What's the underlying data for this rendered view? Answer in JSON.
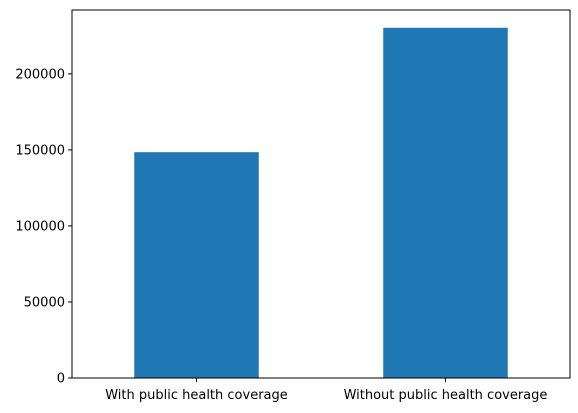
{
  "chart_data": {
    "type": "bar",
    "categories": [
      "With public health coverage",
      "Without public health coverage"
    ],
    "values": [
      148500,
      230300
    ],
    "title": "",
    "xlabel": "",
    "ylabel": "",
    "ylim": [
      0,
      242000
    ],
    "yticks": [
      0,
      50000,
      100000,
      150000,
      200000
    ],
    "ytick_labels": [
      "0",
      "50000",
      "100000",
      "150000",
      "200000"
    ],
    "grid": false,
    "bar_color": "#1f77b4"
  }
}
